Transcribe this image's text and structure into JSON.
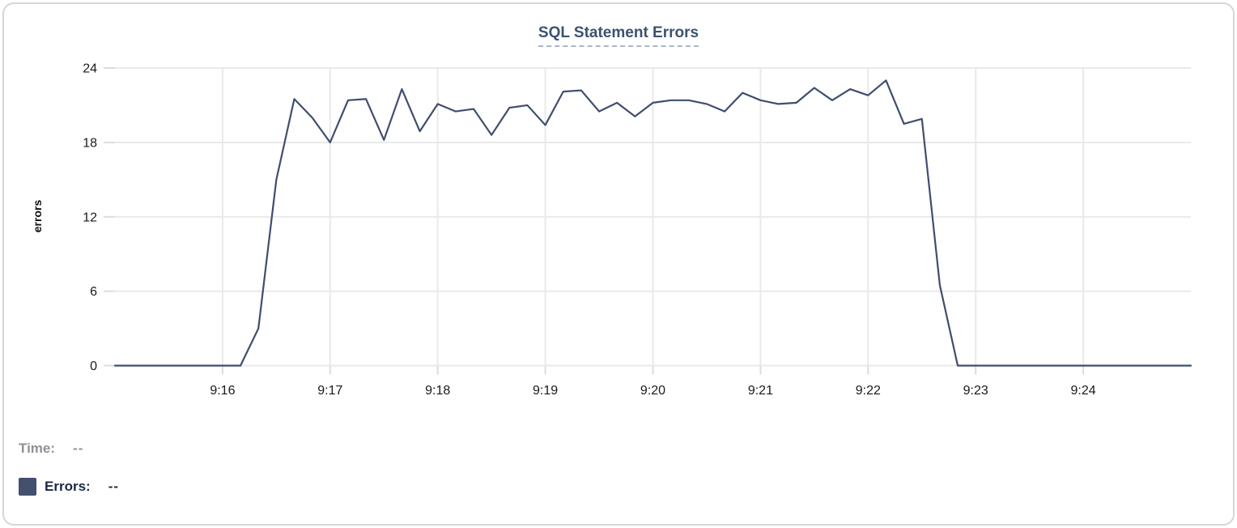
{
  "chart_data": {
    "type": "line",
    "title": "SQL Statement Errors",
    "ylabel": "errors",
    "ylim": [
      0,
      24
    ],
    "yticks": [
      0,
      6,
      12,
      18,
      24
    ],
    "x_tick_labels": [
      "9:16",
      "9:17",
      "9:18",
      "9:19",
      "9:20",
      "9:21",
      "9:22",
      "9:23",
      "9:24"
    ],
    "x_range": [
      "9:15:00",
      "9:25:00"
    ],
    "grid": "on",
    "legend_position": "bottom-left",
    "series": [
      {
        "name": "Errors",
        "color": "#3f4e6e",
        "x": [
          "9:15:00",
          "9:15:10",
          "9:15:20",
          "9:15:30",
          "9:15:40",
          "9:15:50",
          "9:16:00",
          "9:16:10",
          "9:16:20",
          "9:16:30",
          "9:16:40",
          "9:16:50",
          "9:17:00",
          "9:17:10",
          "9:17:20",
          "9:17:30",
          "9:17:40",
          "9:17:50",
          "9:18:00",
          "9:18:10",
          "9:18:20",
          "9:18:30",
          "9:18:40",
          "9:18:50",
          "9:19:00",
          "9:19:10",
          "9:19:20",
          "9:19:30",
          "9:19:40",
          "9:19:50",
          "9:20:00",
          "9:20:10",
          "9:20:20",
          "9:20:30",
          "9:20:40",
          "9:20:50",
          "9:21:00",
          "9:21:10",
          "9:21:20",
          "9:21:30",
          "9:21:40",
          "9:21:50",
          "9:22:00",
          "9:22:10",
          "9:22:20",
          "9:22:30",
          "9:22:40",
          "9:22:50",
          "9:23:00",
          "9:23:10",
          "9:23:20",
          "9:23:30",
          "9:23:40",
          "9:23:50",
          "9:24:00",
          "9:24:10",
          "9:24:20",
          "9:24:30",
          "9:24:40",
          "9:24:50",
          "9:25:00"
        ],
        "values": [
          0,
          0,
          0,
          0,
          0,
          0,
          0,
          0,
          3,
          15,
          21.5,
          20,
          18,
          21.4,
          21.5,
          18.2,
          22.3,
          18.9,
          21.1,
          20.5,
          20.7,
          18.6,
          20.8,
          21,
          19.4,
          22.1,
          22.2,
          20.5,
          21.2,
          20.1,
          21.2,
          21.4,
          21.4,
          21.1,
          20.5,
          22,
          21.4,
          21.1,
          21.2,
          22.4,
          21.4,
          22.3,
          21.8,
          23,
          19.5,
          19.9,
          6.5,
          0,
          0,
          0,
          0,
          0,
          0,
          0,
          0,
          0,
          0,
          0,
          0,
          0,
          0
        ]
      }
    ]
  },
  "readout": {
    "time_label": "Time:",
    "time_value": "--",
    "errors_label": "Errors:",
    "errors_value": "--",
    "swatch_color": "#44506e"
  },
  "colors": {
    "line": "#3f4e6e",
    "title": "#3d5271",
    "title_underline": "#a9b6c6",
    "grid": "#e9e9e9",
    "tick": "#dcdcdc",
    "axis_text": "#18191b",
    "time_text": "#8d9196",
    "errors_text": "#1b2747",
    "card_border": "#d6d6d6"
  }
}
